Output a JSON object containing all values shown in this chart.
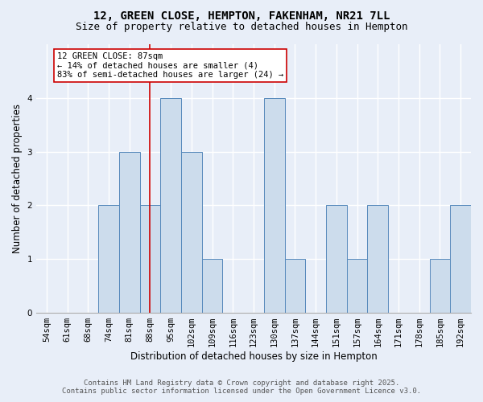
{
  "title": "12, GREEN CLOSE, HEMPTON, FAKENHAM, NR21 7LL",
  "subtitle": "Size of property relative to detached houses in Hempton",
  "xlabel": "Distribution of detached houses by size in Hempton",
  "ylabel": "Number of detached properties",
  "footer_line1": "Contains HM Land Registry data © Crown copyright and database right 2025.",
  "footer_line2": "Contains public sector information licensed under the Open Government Licence v3.0.",
  "categories": [
    "54sqm",
    "61sqm",
    "68sqm",
    "74sqm",
    "81sqm",
    "88sqm",
    "95sqm",
    "102sqm",
    "109sqm",
    "116sqm",
    "123sqm",
    "130sqm",
    "137sqm",
    "144sqm",
    "151sqm",
    "157sqm",
    "164sqm",
    "171sqm",
    "178sqm",
    "185sqm",
    "192sqm"
  ],
  "values": [
    0,
    0,
    0,
    2,
    3,
    2,
    4,
    3,
    1,
    0,
    0,
    4,
    1,
    0,
    2,
    1,
    2,
    0,
    0,
    1,
    2
  ],
  "bar_color": "#ccdcec",
  "bar_edge_color": "#5588bb",
  "vline_x": 5,
  "vline_color": "#cc0000",
  "annotation_text": "12 GREEN CLOSE: 87sqm\n← 14% of detached houses are smaller (4)\n83% of semi-detached houses are larger (24) →",
  "annotation_box_color": "#ffffff",
  "annotation_box_edge_color": "#cc0000",
  "ylim": [
    0,
    5
  ],
  "yticks": [
    0,
    1,
    2,
    3,
    4
  ],
  "background_color": "#e8eef8",
  "plot_bg_color": "#e8eef8",
  "grid_color": "#ffffff",
  "title_fontsize": 10,
  "subtitle_fontsize": 9,
  "axis_label_fontsize": 8.5,
  "tick_fontsize": 7.5,
  "annotation_fontsize": 7.5,
  "footer_fontsize": 6.5
}
